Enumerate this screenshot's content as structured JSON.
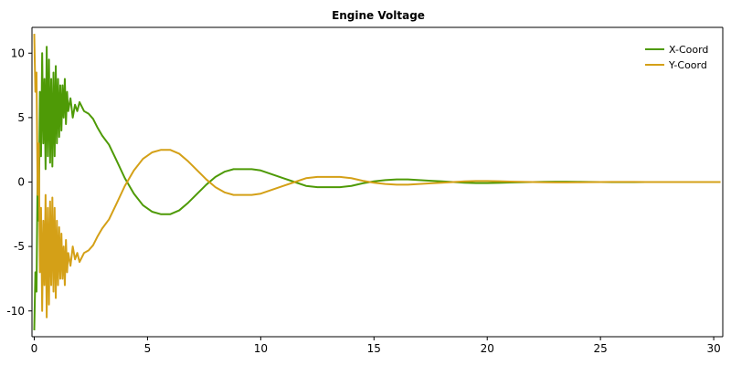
{
  "chart_data": {
    "type": "line",
    "title": "Engine Voltage",
    "xlabel": "",
    "ylabel": "",
    "xlim": [
      -0.1,
      30.4
    ],
    "ylim": [
      -12,
      12
    ],
    "x_ticks": [
      0,
      5,
      10,
      15,
      20,
      25,
      30
    ],
    "y_ticks": [
      10,
      5,
      0,
      -5,
      -10
    ],
    "x_tick_labels": [
      "0",
      "5",
      "10",
      "15",
      "20",
      "25",
      "30"
    ],
    "y_tick_labels": [
      "10",
      "5",
      "0",
      "-5",
      "-10"
    ],
    "grid": false,
    "legend": "top-right",
    "series": [
      {
        "name": "X-Coord",
        "color": "#4e9a06",
        "x": [
          0.0,
          0.05,
          0.1,
          0.15,
          0.2,
          0.25,
          0.3,
          0.35,
          0.4,
          0.45,
          0.5,
          0.55,
          0.6,
          0.65,
          0.7,
          0.75,
          0.8,
          0.85,
          0.9,
          0.95,
          1.0,
          1.05,
          1.1,
          1.15,
          1.2,
          1.25,
          1.3,
          1.35,
          1.4,
          1.45,
          1.5,
          1.6,
          1.7,
          1.8,
          1.9,
          2.0,
          2.2,
          2.4,
          2.6,
          2.8,
          3.0,
          3.3,
          3.6,
          4.0,
          4.4,
          4.8,
          5.2,
          5.6,
          6.0,
          6.4,
          6.8,
          7.2,
          7.6,
          8.0,
          8.4,
          8.8,
          9.2,
          9.6,
          10.0,
          10.5,
          11.0,
          11.5,
          12.0,
          12.5,
          13.0,
          13.5,
          14.0,
          14.5,
          15.0,
          15.5,
          16.0,
          16.5,
          17.0,
          17.5,
          18.0,
          18.5,
          19.0,
          19.5,
          20.0,
          20.5,
          21.0,
          21.5,
          22.0,
          22.5,
          23.0,
          23.5,
          24.0,
          24.5,
          25.0,
          25.5,
          26.0,
          26.5,
          27.0,
          27.5,
          28.0,
          28.5,
          29.0,
          29.5,
          30.0,
          30.3
        ],
        "y": [
          -11.5,
          -7.0,
          -8.5,
          1.0,
          -3.0,
          7.0,
          2.0,
          10.0,
          3.0,
          8.0,
          1.0,
          10.5,
          2.0,
          9.5,
          1.5,
          8.0,
          1.2,
          8.5,
          2.0,
          9.0,
          3.0,
          8.0,
          3.5,
          7.5,
          4.0,
          7.5,
          5.0,
          8.0,
          4.5,
          7.0,
          5.5,
          6.5,
          5.0,
          6.0,
          5.5,
          6.2,
          5.5,
          5.3,
          4.9,
          4.2,
          3.6,
          2.9,
          1.8,
          0.3,
          -0.9,
          -1.8,
          -2.3,
          -2.5,
          -2.5,
          -2.2,
          -1.6,
          -0.9,
          -0.2,
          0.4,
          0.8,
          1.0,
          1.0,
          1.0,
          0.9,
          0.6,
          0.3,
          0.0,
          -0.3,
          -0.4,
          -0.4,
          -0.4,
          -0.3,
          -0.1,
          0.05,
          0.15,
          0.2,
          0.2,
          0.15,
          0.1,
          0.05,
          0.0,
          -0.05,
          -0.08,
          -0.08,
          -0.06,
          -0.04,
          -0.02,
          0.0,
          0.02,
          0.03,
          0.03,
          0.02,
          0.01,
          0.0,
          -0.01,
          -0.01,
          -0.01,
          0.0,
          0.0,
          0.0,
          0.0,
          0.0,
          0.0,
          0.0,
          0.0
        ]
      },
      {
        "name": "Y-Coord",
        "color": "#d4a017",
        "x": [
          0.0,
          0.05,
          0.1,
          0.15,
          0.2,
          0.25,
          0.3,
          0.35,
          0.4,
          0.45,
          0.5,
          0.55,
          0.6,
          0.65,
          0.7,
          0.75,
          0.8,
          0.85,
          0.9,
          0.95,
          1.0,
          1.05,
          1.1,
          1.15,
          1.2,
          1.25,
          1.3,
          1.35,
          1.4,
          1.45,
          1.5,
          1.6,
          1.7,
          1.8,
          1.9,
          2.0,
          2.2,
          2.4,
          2.6,
          2.8,
          3.0,
          3.3,
          3.6,
          4.0,
          4.4,
          4.8,
          5.2,
          5.6,
          6.0,
          6.4,
          6.8,
          7.2,
          7.6,
          8.0,
          8.4,
          8.8,
          9.2,
          9.6,
          10.0,
          10.5,
          11.0,
          11.5,
          12.0,
          12.5,
          13.0,
          13.5,
          14.0,
          14.5,
          15.0,
          15.5,
          16.0,
          16.5,
          17.0,
          17.5,
          18.0,
          18.5,
          19.0,
          19.5,
          20.0,
          20.5,
          21.0,
          21.5,
          22.0,
          22.5,
          23.0,
          23.5,
          24.0,
          24.5,
          25.0,
          25.5,
          26.0,
          26.5,
          27.0,
          27.5,
          28.0,
          28.5,
          29.0,
          29.5,
          30.0,
          30.3
        ],
        "y": [
          11.5,
          7.0,
          8.5,
          -1.0,
          3.0,
          -7.0,
          -2.0,
          -10.0,
          -3.0,
          -8.0,
          -1.0,
          -10.5,
          -2.0,
          -9.5,
          -1.5,
          -8.0,
          -1.2,
          -8.5,
          -2.0,
          -9.0,
          -3.0,
          -8.0,
          -3.5,
          -7.5,
          -4.0,
          -7.5,
          -5.0,
          -8.0,
          -4.5,
          -7.0,
          -5.5,
          -6.5,
          -5.0,
          -6.0,
          -5.5,
          -6.2,
          -5.5,
          -5.3,
          -4.9,
          -4.2,
          -3.6,
          -2.9,
          -1.8,
          -0.3,
          0.9,
          1.8,
          2.3,
          2.5,
          2.5,
          2.2,
          1.6,
          0.9,
          0.2,
          -0.4,
          -0.8,
          -1.0,
          -1.0,
          -1.0,
          -0.9,
          -0.6,
          -0.3,
          0.0,
          0.3,
          0.4,
          0.4,
          0.4,
          0.3,
          0.1,
          -0.05,
          -0.15,
          -0.2,
          -0.2,
          -0.15,
          -0.1,
          -0.05,
          0.0,
          0.05,
          0.08,
          0.08,
          0.06,
          0.04,
          0.02,
          0.0,
          -0.02,
          -0.03,
          -0.03,
          -0.02,
          -0.01,
          0.0,
          0.01,
          0.01,
          0.01,
          0.0,
          0.0,
          0.0,
          0.0,
          0.0,
          0.0,
          0.0,
          0.0
        ]
      }
    ]
  }
}
